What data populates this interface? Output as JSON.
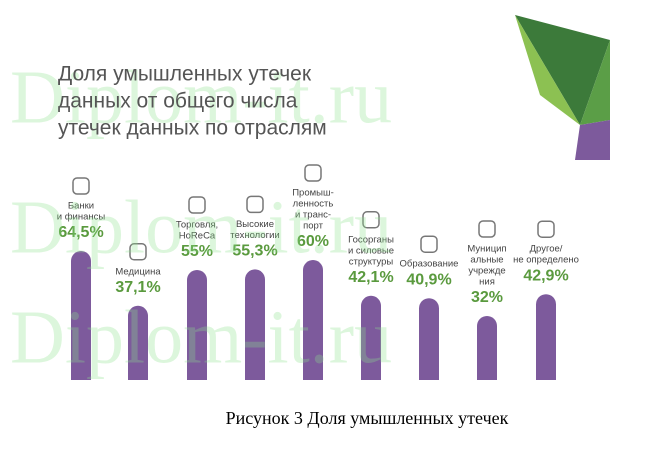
{
  "chart_data": {
    "type": "bar",
    "title": [
      "Доля умышленных утечек",
      "данных от общего числа",
      "утечек данных по отраслям"
    ],
    "categories": [
      [
        "Банки",
        "и финансы"
      ],
      [
        "Медицина"
      ],
      [
        "Торговля,",
        "HoReCa"
      ],
      [
        "Высокие",
        "технологии"
      ],
      [
        "Промыш-",
        "ленность",
        "и транс-",
        "порт"
      ],
      [
        "Госорганы",
        "и силовые",
        "структуры"
      ],
      [
        "Образование"
      ],
      [
        "Муницип",
        "альные",
        "учрежде",
        "ния"
      ],
      [
        "Другое/",
        "не определено"
      ]
    ],
    "values": [
      64.5,
      37.1,
      55,
      55.3,
      60,
      42.1,
      40.9,
      32,
      42.9
    ],
    "value_labels": [
      "64,5%",
      "37,1%",
      "55%",
      "55,3%",
      "60%",
      "42,1%",
      "40,9%",
      "32%",
      "42,9%"
    ],
    "color": "#7d5a9c"
  },
  "watermark": [
    "Diplom-it.ru",
    "Diplom-it.ru",
    "Diplom-it.ru"
  ],
  "caption": "Рисунок 3 Доля умышленных утечек"
}
